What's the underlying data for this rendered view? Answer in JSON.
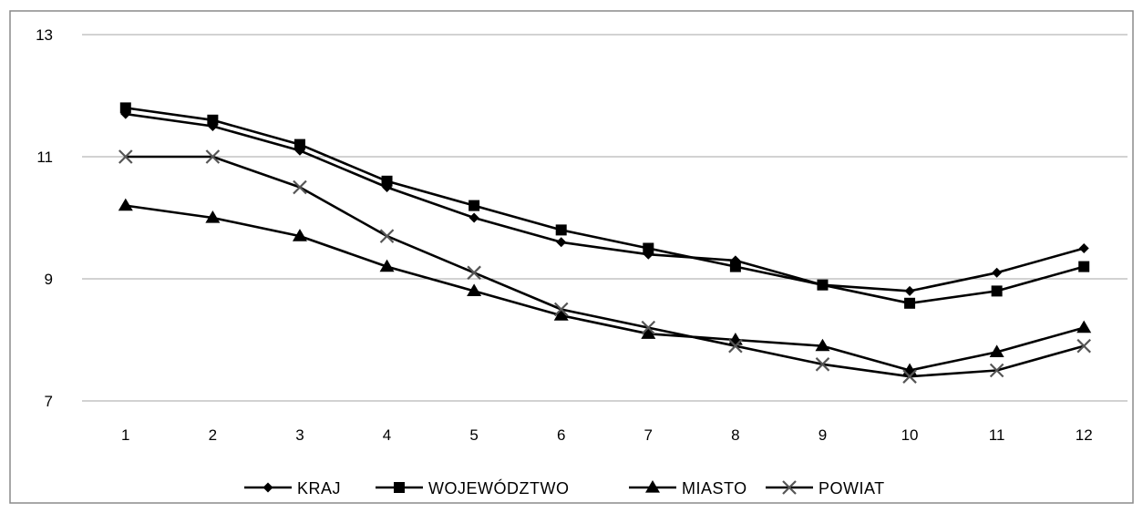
{
  "chart_data": {
    "type": "line",
    "x": [
      1,
      2,
      3,
      4,
      5,
      6,
      7,
      8,
      9,
      10,
      11,
      12
    ],
    "ylim": [
      7,
      13
    ],
    "yticks": [
      7,
      9,
      11,
      13
    ],
    "grid": true,
    "legend_position": "bottom",
    "series": [
      {
        "name": "KRAJ",
        "marker": "diamond",
        "color": "#000000",
        "values": [
          11.7,
          11.5,
          11.1,
          10.5,
          10.0,
          9.6,
          9.4,
          9.3,
          8.9,
          8.8,
          9.1,
          9.5
        ]
      },
      {
        "name": "WOJEWÓDZTWO",
        "marker": "square",
        "color": "#000000",
        "values": [
          11.8,
          11.6,
          11.2,
          10.6,
          10.2,
          9.8,
          9.5,
          9.2,
          8.9,
          8.6,
          8.8,
          9.2
        ]
      },
      {
        "name": "MIASTO",
        "marker": "triangle",
        "color": "#000000",
        "values": [
          10.2,
          10.0,
          9.7,
          9.2,
          8.8,
          8.4,
          8.1,
          8.0,
          7.9,
          7.5,
          7.8,
          8.2
        ]
      },
      {
        "name": "POWIAT",
        "marker": "x",
        "color": "#000000",
        "values": [
          11.0,
          11.0,
          10.5,
          9.7,
          9.1,
          8.5,
          8.2,
          7.9,
          7.6,
          7.4,
          7.5,
          7.9
        ]
      }
    ]
  }
}
